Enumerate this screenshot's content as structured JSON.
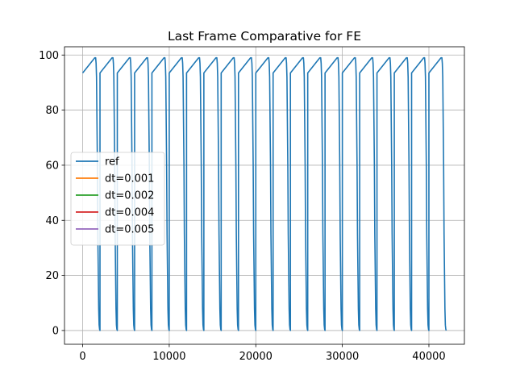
{
  "chart_data": {
    "type": "line",
    "title": "Last Frame Comparative for FE",
    "xlabel": "",
    "ylabel": "",
    "xlim": [
      -2100,
      44100
    ],
    "ylim": [
      -5,
      103
    ],
    "xticks": [
      0,
      10000,
      20000,
      30000,
      40000
    ],
    "yticks": [
      0,
      20,
      40,
      60,
      80,
      100
    ],
    "grid": true,
    "legend_position": "center-left",
    "series": [
      {
        "name": "ref",
        "color": "#1f77b4",
        "x": [
          0,
          1400,
          1500,
          1550,
          1600,
          1700,
          1750,
          1850,
          1900,
          1950,
          2000,
          2000,
          3400,
          3500,
          3550,
          3600,
          3700,
          3750,
          3850,
          3900,
          3950,
          4000,
          4000,
          5400,
          5500,
          5550,
          5600,
          5700,
          5750,
          5850,
          5900,
          5950,
          6000,
          6000,
          7400,
          7500,
          7550,
          7600,
          7700,
          7750,
          7850,
          7900,
          7950,
          8000,
          8000,
          9400,
          9500,
          9550,
          9600,
          9700,
          9750,
          9850,
          9900,
          9950,
          10000,
          10000,
          11400,
          11500,
          11550,
          11600,
          11700,
          11750,
          11850,
          11900,
          11950,
          12000,
          12000,
          13400,
          13500,
          13550,
          13600,
          13700,
          13750,
          13850,
          13900,
          13950,
          14000,
          14000,
          15400,
          15500,
          15550,
          15600,
          15700,
          15750,
          15850,
          15900,
          15950,
          16000,
          16000,
          17400,
          17500,
          17550,
          17600,
          17700,
          17750,
          17850,
          17900,
          17950,
          18000,
          18000,
          19400,
          19500,
          19550,
          19600,
          19700,
          19750,
          19850,
          19900,
          19950,
          20000,
          20000,
          21400,
          21500,
          21550,
          21600,
          21700,
          21750,
          21850,
          21900,
          21950,
          22000,
          22000,
          23400,
          23500,
          23550,
          23600,
          23700,
          23750,
          23850,
          23900,
          23950,
          24000,
          24000,
          25400,
          25500,
          25550,
          25600,
          25700,
          25750,
          25850,
          25900,
          25950,
          26000,
          26000,
          27400,
          27500,
          27550,
          27600,
          27700,
          27750,
          27850,
          27900,
          27950,
          28000,
          28000,
          29400,
          29500,
          29550,
          29600,
          29700,
          29750,
          29850,
          29900,
          29950,
          30000,
          30000,
          31400,
          31500,
          31550,
          31600,
          31700,
          31750,
          31850,
          31900,
          31950,
          32000,
          32000,
          33400,
          33500,
          33550,
          33600,
          33700,
          33750,
          33850,
          33900,
          33950,
          34000,
          34000,
          35400,
          35500,
          35550,
          35600,
          35700,
          35750,
          35850,
          35900,
          35950,
          36000,
          36000,
          37400,
          37500,
          37550,
          37600,
          37700,
          37750,
          37850,
          37900,
          37950,
          38000,
          38000,
          39400,
          39500,
          39550,
          39600,
          39700,
          39750,
          39850,
          39900,
          39950,
          40000,
          40000,
          41400,
          41500,
          41550,
          41600,
          41700,
          41750,
          41850,
          41900,
          41950,
          42000
        ],
        "y": [
          93.5,
          99,
          99,
          97,
          92,
          60,
          35,
          8,
          2,
          0.5,
          0,
          93.5,
          99,
          99,
          97,
          92,
          60,
          35,
          8,
          2,
          0.5,
          0,
          93.5,
          99,
          99,
          97,
          92,
          60,
          35,
          8,
          2,
          0.5,
          0,
          93.5,
          99,
          99,
          97,
          92,
          60,
          35,
          8,
          2,
          0.5,
          0,
          93.5,
          99,
          99,
          97,
          92,
          60,
          35,
          8,
          2,
          0.5,
          0,
          93.5,
          99,
          99,
          97,
          92,
          60,
          35,
          8,
          2,
          0.5,
          0,
          93.5,
          99,
          99,
          97,
          92,
          60,
          35,
          8,
          2,
          0.5,
          0,
          93.5,
          99,
          99,
          97,
          92,
          60,
          35,
          8,
          2,
          0.5,
          0,
          93.5,
          99,
          99,
          97,
          92,
          60,
          35,
          8,
          2,
          0.5,
          0,
          93.5,
          99,
          99,
          97,
          92,
          60,
          35,
          8,
          2,
          0.5,
          0,
          93.5,
          99,
          99,
          97,
          92,
          60,
          35,
          8,
          2,
          0.5,
          0,
          93.5,
          99,
          99,
          97,
          92,
          60,
          35,
          8,
          2,
          0.5,
          0,
          93.5,
          99,
          99,
          97,
          92,
          60,
          35,
          8,
          2,
          0.5,
          0,
          93.5,
          99,
          99,
          97,
          92,
          60,
          35,
          8,
          2,
          0.5,
          0,
          93.5,
          99,
          99,
          97,
          92,
          60,
          35,
          8,
          2,
          0.5,
          0,
          93.5,
          99,
          99,
          97,
          92,
          60,
          35,
          8,
          2,
          0.5,
          0,
          93.5,
          99,
          99,
          97,
          92,
          60,
          35,
          8,
          2,
          0.5,
          0,
          93.5,
          99,
          99,
          97,
          92,
          60,
          35,
          8,
          2,
          0.5,
          0,
          93.5,
          99,
          99,
          97,
          92,
          60,
          35,
          8,
          2,
          0.5,
          0,
          93.5,
          99,
          99,
          97,
          92,
          60,
          35,
          8,
          2,
          0.5,
          0,
          93.5,
          99,
          99,
          97,
          92,
          60,
          35,
          8,
          2,
          0.5,
          0
        ]
      },
      {
        "name": "dt=0.001",
        "color": "#ff7f0e",
        "x": [],
        "y": []
      },
      {
        "name": "dt=0.002",
        "color": "#2ca02c",
        "x": [],
        "y": []
      },
      {
        "name": "dt=0.004",
        "color": "#d62728",
        "x": [],
        "y": []
      },
      {
        "name": "dt=0.005",
        "color": "#9467bd",
        "x": [],
        "y": []
      }
    ]
  }
}
